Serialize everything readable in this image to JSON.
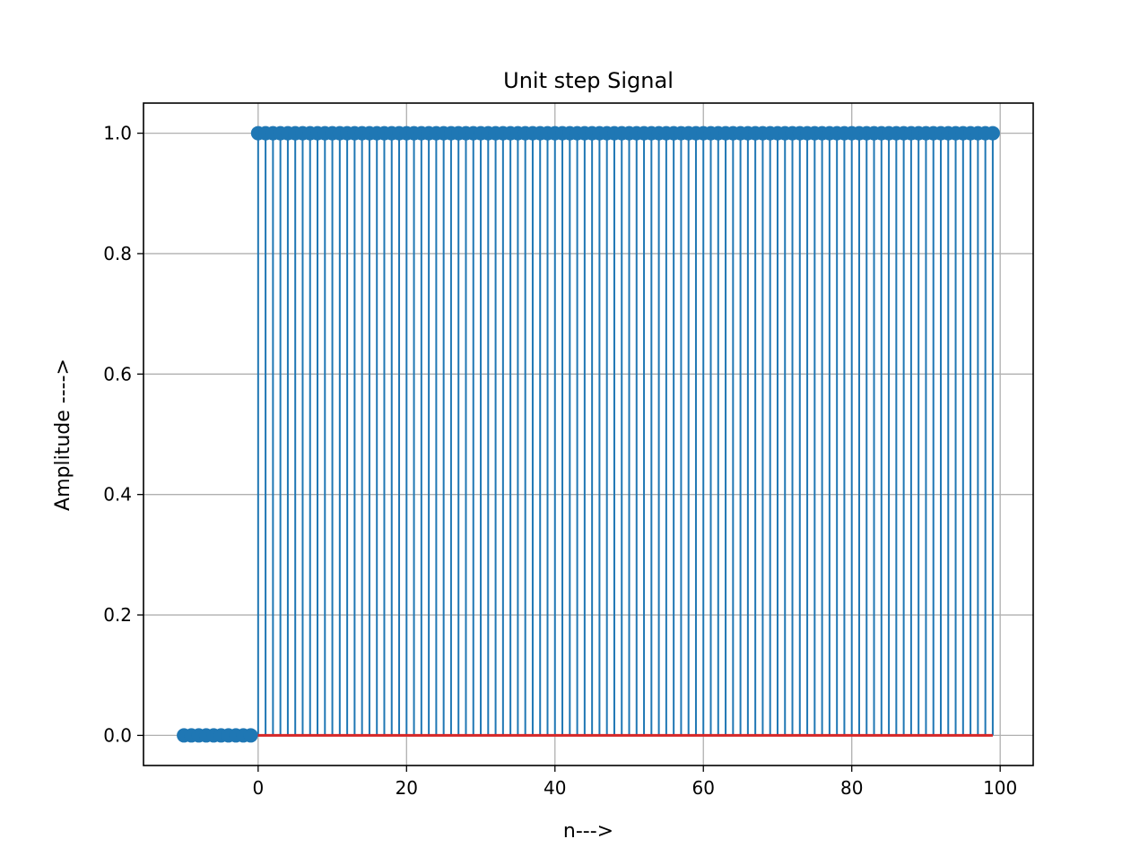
{
  "chart_data": {
    "type": "stem",
    "title": "Unit step Signal",
    "xlabel": "n--->",
    "ylabel": "Amplitude ---->",
    "xlim": [
      -15.45,
      104.45
    ],
    "ylim": [
      -0.05,
      1.05
    ],
    "xticks": [
      0,
      20,
      40,
      60,
      80,
      100
    ],
    "yticks": [
      0.0,
      0.2,
      0.4,
      0.6,
      0.8,
      1.0
    ],
    "xtick_labels": [
      "0",
      "20",
      "40",
      "60",
      "80",
      "100"
    ],
    "ytick_labels": [
      "0.0",
      "0.2",
      "0.4",
      "0.6",
      "0.8",
      "1.0"
    ],
    "grid": true,
    "series": [
      {
        "x_range": [
          -10,
          99
        ],
        "step_at": 0,
        "value_before": 0,
        "value_after": 1,
        "color": "#1f77b4"
      }
    ],
    "baseline": {
      "y": 0,
      "color": "#d62728"
    }
  }
}
